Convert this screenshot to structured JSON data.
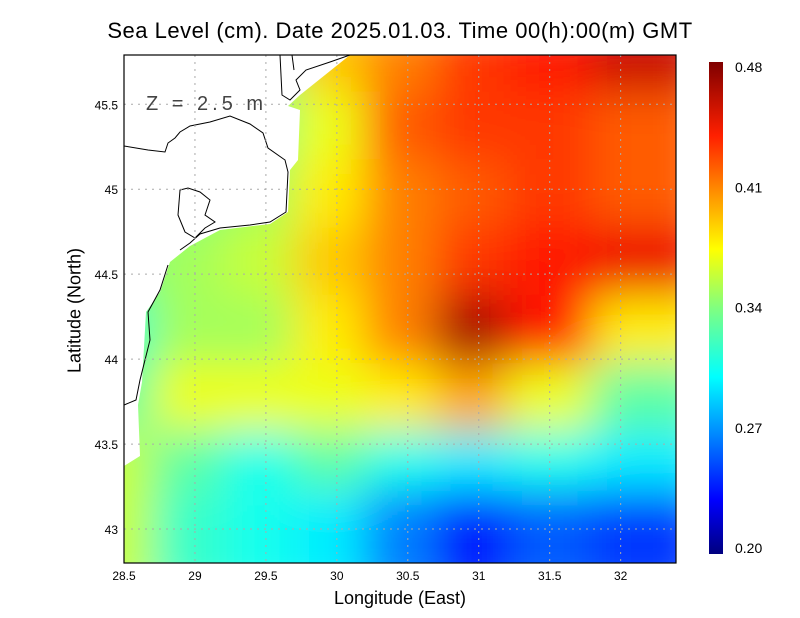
{
  "title": "Sea Level (cm). Date 2025.01.03. Time 00(h):00(m) GMT",
  "depth_label": "Z = 2.5 m",
  "chart_data": {
    "type": "heatmap",
    "title": "Sea Level (cm). Date 2025.01.03. Time 00(h):00(m) GMT",
    "xlabel": "Longitude (East)",
    "ylabel": "Latitude (North)",
    "xlim": [
      28.5,
      32.39
    ],
    "ylim": [
      42.8,
      45.79
    ],
    "xticks": [
      "28.5",
      "29",
      "29.5",
      "30",
      "30.5",
      "31",
      "31.5",
      "32"
    ],
    "xtick_values": [
      28.5,
      29,
      29.5,
      30,
      30.5,
      31,
      31.5,
      32
    ],
    "yticks": [
      "43",
      "43.5",
      "44",
      "44.5",
      "45",
      "45.5"
    ],
    "ytick_values": [
      43,
      43.5,
      44,
      44.5,
      45,
      45.5
    ],
    "grid": true,
    "lon": [
      28.6,
      29.1,
      29.6,
      30.1,
      30.6,
      31.1,
      31.6,
      32.2
    ],
    "lat": [
      45.65,
      45.25,
      44.85,
      44.45,
      44.05,
      43.65,
      43.25,
      42.9
    ],
    "values": [
      [
        null,
        null,
        null,
        0.39,
        0.41,
        0.43,
        0.44,
        0.46
      ],
      [
        null,
        null,
        null,
        0.37,
        0.42,
        0.43,
        0.43,
        0.42
      ],
      [
        null,
        null,
        0.35,
        0.38,
        0.41,
        0.42,
        0.43,
        0.42
      ],
      [
        0.34,
        0.35,
        0.36,
        0.39,
        0.41,
        0.43,
        0.44,
        0.45
      ],
      [
        0.32,
        0.35,
        0.35,
        0.38,
        0.41,
        0.47,
        0.44,
        0.38
      ],
      [
        0.33,
        0.37,
        0.37,
        0.37,
        0.38,
        0.4,
        0.37,
        0.33
      ],
      [
        0.36,
        0.33,
        0.31,
        0.33,
        0.31,
        0.3,
        0.31,
        0.3
      ],
      [
        0.36,
        0.32,
        0.31,
        0.3,
        0.27,
        0.24,
        0.26,
        0.25
      ]
    ],
    "colorbar": {
      "min": 0.2,
      "max": 0.48,
      "ticks": [
        "0.48",
        "0.41",
        "0.34",
        "0.27",
        "0.20"
      ],
      "colormap": "jet"
    }
  }
}
